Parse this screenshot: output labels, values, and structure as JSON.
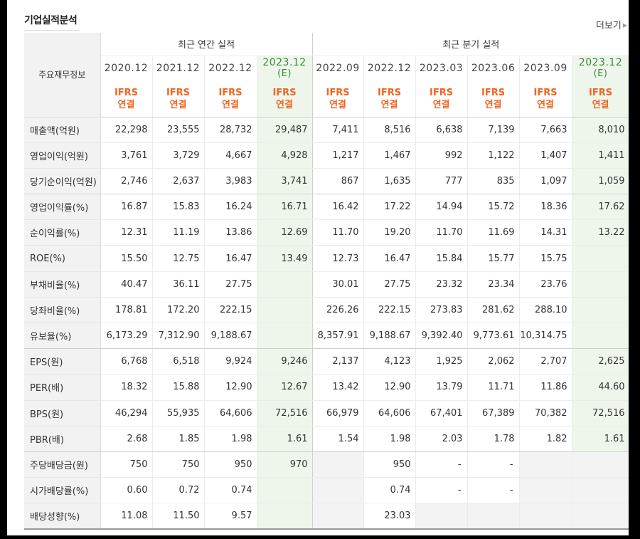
{
  "header": {
    "title": "기업실적분석",
    "more_label": "더보기"
  },
  "table": {
    "row_header_label": "주요재무정보",
    "group_annual": "최근 연간 실적",
    "group_quarter": "최근 분기 실적",
    "columns": [
      {
        "date": "2020.12",
        "est": null,
        "ifrs1": "IFRS",
        "ifrs2": "연결"
      },
      {
        "date": "2021.12",
        "est": null,
        "ifrs1": "IFRS",
        "ifrs2": "연결"
      },
      {
        "date": "2022.12",
        "est": null,
        "ifrs1": "IFRS",
        "ifrs2": "연결"
      },
      {
        "date": "2023.12",
        "est": "(E)",
        "ifrs1": "IFRS",
        "ifrs2": "연결"
      },
      {
        "date": "2022.09",
        "est": null,
        "ifrs1": "IFRS",
        "ifrs2": "연결"
      },
      {
        "date": "2022.12",
        "est": null,
        "ifrs1": "IFRS",
        "ifrs2": "연결"
      },
      {
        "date": "2023.03",
        "est": null,
        "ifrs1": "IFRS",
        "ifrs2": "연결"
      },
      {
        "date": "2023.06",
        "est": null,
        "ifrs1": "IFRS",
        "ifrs2": "연결"
      },
      {
        "date": "2023.09",
        "est": null,
        "ifrs1": "IFRS",
        "ifrs2": "연결"
      },
      {
        "date": "2023.12",
        "est": "(E)",
        "ifrs1": "IFRS",
        "ifrs2": "연결"
      }
    ],
    "rows": [
      {
        "label": "매출액(억원)",
        "values": [
          "22,298",
          "23,555",
          "28,732",
          "29,487",
          "7,411",
          "8,516",
          "6,638",
          "7,139",
          "7,663",
          "8,010"
        ]
      },
      {
        "label": "영업이익(억원)",
        "values": [
          "3,761",
          "3,729",
          "4,667",
          "4,928",
          "1,217",
          "1,467",
          "992",
          "1,122",
          "1,407",
          "1,411"
        ]
      },
      {
        "label": "당기순이익(억원)",
        "values": [
          "2,746",
          "2,637",
          "3,983",
          "3,741",
          "867",
          "1,635",
          "777",
          "835",
          "1,097",
          "1,059"
        ]
      },
      {
        "label": "영업이익률(%)",
        "values": [
          "16.87",
          "15.83",
          "16.24",
          "16.71",
          "16.42",
          "17.22",
          "14.94",
          "15.72",
          "18.36",
          "17.62"
        ]
      },
      {
        "label": "순이익률(%)",
        "values": [
          "12.31",
          "11.19",
          "13.86",
          "12.69",
          "11.70",
          "19.20",
          "11.70",
          "11.69",
          "14.31",
          "13.22"
        ]
      },
      {
        "label": "ROE(%)",
        "values": [
          "15.50",
          "12.75",
          "16.47",
          "13.49",
          "12.73",
          "16.47",
          "15.84",
          "15.77",
          "15.75",
          ""
        ]
      },
      {
        "label": "부채비율(%)",
        "values": [
          "40.47",
          "36.11",
          "27.75",
          "",
          "30.01",
          "27.75",
          "23.32",
          "23.34",
          "23.76",
          ""
        ]
      },
      {
        "label": "당좌비율(%)",
        "values": [
          "178.81",
          "172.20",
          "222.15",
          "",
          "226.26",
          "222.15",
          "273.83",
          "281.62",
          "288.10",
          ""
        ]
      },
      {
        "label": "유보율(%)",
        "values": [
          "6,173.29",
          "7,312.90",
          "9,188.67",
          "",
          "8,357.91",
          "9,188.67",
          "9,392.40",
          "9,773.61",
          "10,314.75",
          ""
        ]
      },
      {
        "label": "EPS(원)",
        "values": [
          "6,768",
          "6,518",
          "9,924",
          "9,246",
          "2,137",
          "4,123",
          "1,925",
          "2,062",
          "2,707",
          "2,625"
        ]
      },
      {
        "label": "PER(배)",
        "values": [
          "18.32",
          "15.88",
          "12.90",
          "12.67",
          "13.42",
          "12.90",
          "13.79",
          "11.71",
          "11.86",
          "44.60"
        ]
      },
      {
        "label": "BPS(원)",
        "values": [
          "46,294",
          "55,935",
          "64,606",
          "72,516",
          "66,979",
          "64,606",
          "67,401",
          "67,389",
          "70,382",
          "72,516"
        ]
      },
      {
        "label": "PBR(배)",
        "values": [
          "2.68",
          "1.85",
          "1.98",
          "1.61",
          "1.54",
          "1.98",
          "2.03",
          "1.78",
          "1.82",
          "1.61"
        ]
      },
      {
        "label": "주당배당금(원)",
        "values": [
          "750",
          "750",
          "950",
          "970",
          "",
          "950",
          "-",
          "-",
          "",
          ""
        ]
      },
      {
        "label": "시가배당률(%)",
        "values": [
          "0.60",
          "0.72",
          "0.74",
          "",
          "",
          "0.74",
          "-",
          "-",
          "",
          ""
        ]
      },
      {
        "label": "배당성향(%)",
        "values": [
          "11.08",
          "11.50",
          "9.57",
          "",
          "",
          "23.03",
          "",
          "",
          "",
          ""
        ]
      }
    ]
  }
}
